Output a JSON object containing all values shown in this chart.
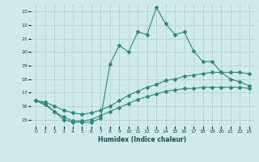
{
  "xlabel": "Humidex (Indice chaleur)",
  "bg_color": "#ceeaea",
  "grid_color": "#b8d4d4",
  "line_color": "#2d8b7a",
  "xlim": [
    -0.5,
    23.5
  ],
  "ylim": [
    14.5,
    23.5
  ],
  "yticks": [
    15,
    16,
    17,
    18,
    19,
    20,
    21,
    22,
    23
  ],
  "xticks": [
    0,
    1,
    2,
    3,
    4,
    5,
    6,
    7,
    8,
    9,
    10,
    11,
    12,
    13,
    14,
    15,
    16,
    17,
    18,
    19,
    20,
    21,
    22,
    23
  ],
  "series1_x": [
    0,
    1,
    2,
    3,
    4,
    5,
    6,
    7,
    8,
    9,
    10,
    11,
    12,
    13,
    14,
    15,
    16,
    17,
    18,
    19,
    20,
    21,
    22,
    23
  ],
  "series1_y": [
    16.4,
    16.1,
    15.6,
    15.0,
    14.8,
    14.8,
    14.8,
    15.1,
    19.1,
    20.5,
    20.0,
    21.5,
    21.3,
    23.3,
    22.1,
    21.3,
    21.5,
    20.1,
    19.3,
    19.3,
    18.5,
    18.0,
    17.8,
    17.5
  ],
  "series2_x": [
    0,
    1,
    2,
    3,
    4,
    5,
    6,
    7,
    8,
    9,
    10,
    11,
    12,
    13,
    14,
    15,
    16,
    17,
    18,
    19,
    20,
    21,
    22,
    23
  ],
  "series2_y": [
    16.4,
    16.3,
    16.0,
    15.7,
    15.5,
    15.4,
    15.5,
    15.7,
    16.0,
    16.4,
    16.8,
    17.1,
    17.4,
    17.6,
    17.9,
    18.0,
    18.2,
    18.3,
    18.4,
    18.5,
    18.5,
    18.5,
    18.5,
    18.4
  ],
  "series3_x": [
    0,
    1,
    2,
    3,
    4,
    5,
    6,
    7,
    8,
    9,
    10,
    11,
    12,
    13,
    14,
    15,
    16,
    17,
    18,
    19,
    20,
    21,
    22,
    23
  ],
  "series3_y": [
    16.4,
    16.2,
    15.6,
    15.2,
    14.9,
    14.9,
    15.0,
    15.3,
    15.6,
    15.9,
    16.2,
    16.5,
    16.7,
    16.9,
    17.1,
    17.2,
    17.3,
    17.3,
    17.4,
    17.4,
    17.4,
    17.4,
    17.4,
    17.3
  ]
}
